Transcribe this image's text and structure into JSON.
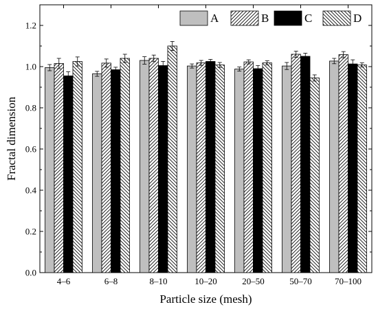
{
  "chart_data": {
    "type": "bar",
    "title": "",
    "xlabel": "Particle size (mesh)",
    "ylabel": "Fractal dimension",
    "ylim": [
      0.0,
      1.3
    ],
    "yticks": [
      "0.0",
      "0.2",
      "0.4",
      "0.6",
      "0.8",
      "1.0",
      "1.2"
    ],
    "grid": false,
    "legend_position": "top-right",
    "categories": [
      "4–6",
      "6–8",
      "8–10",
      "10–20",
      "20–50",
      "50–70",
      "70–100"
    ],
    "series": [
      {
        "name": "A",
        "pattern": "solid-gray",
        "color": "#bfbfbf",
        "values": [
          0.995,
          0.965,
          1.03,
          1.003,
          0.988,
          1.003,
          1.027
        ],
        "errors": [
          0.015,
          0.012,
          0.018,
          0.01,
          0.01,
          0.017,
          0.013
        ]
      },
      {
        "name": "B",
        "pattern": "forward-hatch",
        "color": "#ffffff",
        "values": [
          1.015,
          1.017,
          1.04,
          1.018,
          1.023,
          1.06,
          1.058
        ],
        "errors": [
          0.025,
          0.02,
          0.016,
          0.012,
          0.01,
          0.015,
          0.015
        ]
      },
      {
        "name": "C",
        "pattern": "solid-black",
        "color": "#000000",
        "values": [
          0.955,
          0.985,
          1.005,
          1.025,
          0.99,
          1.05,
          1.013
        ],
        "errors": [
          0.02,
          0.012,
          0.02,
          0.01,
          0.015,
          0.015,
          0.02
        ]
      },
      {
        "name": "D",
        "pattern": "back-hatch",
        "color": "#ffffff",
        "values": [
          1.025,
          1.04,
          1.1,
          1.008,
          1.018,
          0.945,
          1.008
        ],
        "errors": [
          0.022,
          0.02,
          0.022,
          0.012,
          0.01,
          0.015,
          0.01
        ]
      }
    ]
  }
}
